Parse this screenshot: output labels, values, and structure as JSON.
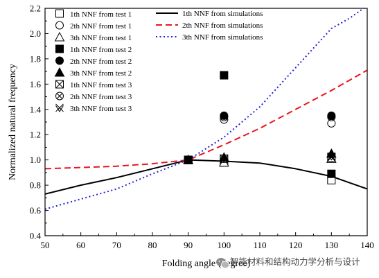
{
  "chart_data": {
    "type": "scatter",
    "xlabel": "Folding angle (degree)",
    "ylabel": "Normalized natural frequency",
    "xlim": [
      50,
      140
    ],
    "ylim": [
      0.4,
      2.2
    ],
    "x_ticks": [
      50,
      60,
      70,
      80,
      90,
      100,
      110,
      120,
      130,
      140
    ],
    "y_ticks": [
      0.4,
      0.6,
      0.8,
      1.0,
      1.2,
      1.4,
      1.6,
      1.8,
      2.0,
      2.2
    ],
    "x_tick_labels": [
      "50",
      "60",
      "70",
      "80",
      "90",
      "100",
      "110",
      "120",
      "130",
      "140"
    ],
    "y_tick_labels": [
      "0.4",
      "0.6",
      "0.8",
      "1.0",
      "1.2",
      "1.4",
      "1.6",
      "1.8",
      "2.0",
      "2.2"
    ],
    "grid": false,
    "legend_left_position": "top-left",
    "legend_right_position": "top-right",
    "lines": [
      {
        "name": "1th NNF from simulations",
        "style": "solid",
        "color": "#000000",
        "x": [
          50,
          60,
          70,
          80,
          90,
          100,
          110,
          120,
          130,
          140
        ],
        "y": [
          0.73,
          0.8,
          0.86,
          0.93,
          1.0,
          0.99,
          0.975,
          0.93,
          0.87,
          0.77
        ]
      },
      {
        "name": "2th NNF from simulations",
        "style": "dashed",
        "color": "#e8141c",
        "x": [
          50,
          60,
          70,
          80,
          90,
          100,
          110,
          120,
          130,
          140
        ],
        "y": [
          0.93,
          0.94,
          0.95,
          0.97,
          1.0,
          1.12,
          1.25,
          1.4,
          1.55,
          1.71
        ]
      },
      {
        "name": "3th NNF from simulations",
        "style": "dotted",
        "color": "#1f1fd6",
        "x": [
          50,
          60,
          70,
          80,
          90,
          100,
          110,
          120,
          130,
          135,
          140
        ],
        "y": [
          0.61,
          0.69,
          0.77,
          0.89,
          1.0,
          1.18,
          1.42,
          1.73,
          2.04,
          2.12,
          2.22
        ]
      }
    ],
    "points": [
      {
        "name": "1th NNF from test 1",
        "marker": "square-open",
        "x": [
          90,
          100,
          130
        ],
        "y": [
          1.0,
          0.98,
          0.84
        ]
      },
      {
        "name": "2th NNF from test 1",
        "marker": "circle-open",
        "x": [
          90,
          100,
          130
        ],
        "y": [
          1.0,
          1.32,
          1.29
        ]
      },
      {
        "name": "3th NNF from test 1",
        "marker": "triangle-open",
        "x": [
          90,
          100,
          130
        ],
        "y": [
          1.0,
          0.98,
          1.01
        ]
      },
      {
        "name": "1th NNF from test 2",
        "marker": "square-filled",
        "x": [
          90,
          100,
          130
        ],
        "y": [
          1.0,
          1.67,
          0.89
        ]
      },
      {
        "name": "2th NNF from test 2",
        "marker": "circle-filled",
        "x": [
          90,
          100,
          130
        ],
        "y": [
          1.0,
          1.35,
          1.35
        ]
      },
      {
        "name": "3th NNF from test 2",
        "marker": "triangle-filled",
        "x": [
          90,
          100,
          130
        ],
        "y": [
          1.0,
          1.02,
          1.05
        ]
      },
      {
        "name": "1th NNF from test 3",
        "marker": "square-cross",
        "x": [
          90,
          100,
          130
        ],
        "y": [
          1.0,
          1.01,
          1.02
        ]
      },
      {
        "name": "2th NNF from test 3",
        "marker": "circle-cross",
        "x": [
          90,
          100,
          130
        ],
        "y": [
          1.0,
          1.34,
          1.34
        ]
      },
      {
        "name": "3th NNF from test 3",
        "marker": "star-cross",
        "x": [
          90,
          100,
          130
        ],
        "y": [
          1.0,
          1.01,
          1.03
        ]
      }
    ]
  },
  "watermark": {
    "text": "智能材料和结构动力学分析与设计",
    "logo_icon": "wechat-logo-icon"
  }
}
